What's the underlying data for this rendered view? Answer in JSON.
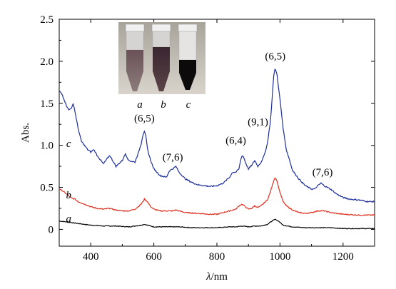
{
  "chart_data": {
    "type": "line",
    "xlabel_symbol": "λ",
    "xlabel_unit": "/nm",
    "ylabel": "Abs.",
    "xlim": [
      300,
      1300
    ],
    "ylim": [
      -0.2,
      2.5
    ],
    "xticks": [
      400,
      600,
      800,
      1000,
      1200
    ],
    "xtick_labels": [
      "400",
      "600",
      "800",
      "1000",
      "1200"
    ],
    "yticks": [
      0,
      0.5,
      1.0,
      1.5,
      2.0,
      2.5
    ],
    "ytick_labels": [
      "0",
      "0.5",
      "1.0",
      "1.5",
      "2.0",
      "2.5"
    ],
    "grid": false,
    "series": [
      {
        "name": "a",
        "color": "#000000",
        "x": [
          300,
          320,
          340,
          360,
          380,
          400,
          440,
          480,
          520,
          540,
          560,
          570,
          580,
          600,
          640,
          680,
          720,
          760,
          800,
          840,
          860,
          880,
          900,
          920,
          940,
          960,
          975,
          985,
          995,
          1010,
          1040,
          1080,
          1120,
          1160,
          1200,
          1250,
          1300
        ],
        "y": [
          0.1,
          0.09,
          0.08,
          0.07,
          0.06,
          0.05,
          0.04,
          0.04,
          0.03,
          0.04,
          0.05,
          0.06,
          0.05,
          0.03,
          0.03,
          0.03,
          0.02,
          0.02,
          0.02,
          0.03,
          0.03,
          0.04,
          0.03,
          0.04,
          0.04,
          0.06,
          0.1,
          0.12,
          0.1,
          0.05,
          0.03,
          0.02,
          0.02,
          0.02,
          0.01,
          0.01,
          0.01
        ]
      },
      {
        "name": "b",
        "color": "#e03020",
        "x": [
          300,
          310,
          320,
          330,
          340,
          350,
          360,
          380,
          400,
          420,
          440,
          460,
          480,
          500,
          520,
          540,
          560,
          570,
          580,
          590,
          600,
          620,
          640,
          660,
          670,
          680,
          700,
          740,
          780,
          800,
          820,
          840,
          860,
          870,
          880,
          890,
          900,
          910,
          920,
          930,
          940,
          960,
          970,
          980,
          985,
          990,
          1000,
          1010,
          1020,
          1040,
          1060,
          1080,
          1100,
          1120,
          1140,
          1160,
          1200,
          1250,
          1300
        ],
        "y": [
          0.48,
          0.46,
          0.43,
          0.4,
          0.37,
          0.36,
          0.33,
          0.3,
          0.27,
          0.25,
          0.24,
          0.25,
          0.23,
          0.22,
          0.22,
          0.24,
          0.3,
          0.36,
          0.33,
          0.27,
          0.24,
          0.22,
          0.22,
          0.22,
          0.23,
          0.22,
          0.2,
          0.19,
          0.18,
          0.18,
          0.2,
          0.22,
          0.24,
          0.28,
          0.3,
          0.27,
          0.24,
          0.25,
          0.28,
          0.26,
          0.28,
          0.35,
          0.45,
          0.58,
          0.62,
          0.58,
          0.44,
          0.33,
          0.28,
          0.23,
          0.2,
          0.19,
          0.2,
          0.22,
          0.22,
          0.2,
          0.18,
          0.17,
          0.17
        ]
      },
      {
        "name": "c",
        "color": "#1f2f9a",
        "x": [
          300,
          310,
          320,
          330,
          340,
          345,
          350,
          360,
          370,
          380,
          390,
          400,
          410,
          420,
          440,
          460,
          480,
          500,
          510,
          520,
          540,
          550,
          560,
          565,
          570,
          575,
          580,
          590,
          600,
          620,
          640,
          650,
          660,
          670,
          680,
          700,
          720,
          740,
          760,
          780,
          800,
          820,
          840,
          850,
          860,
          870,
          875,
          880,
          885,
          890,
          900,
          910,
          920,
          930,
          940,
          950,
          960,
          970,
          975,
          980,
          985,
          990,
          1000,
          1010,
          1020,
          1030,
          1040,
          1060,
          1080,
          1100,
          1110,
          1120,
          1130,
          1140,
          1160,
          1180,
          1200,
          1220,
          1250,
          1280,
          1300
        ],
        "y": [
          1.65,
          1.6,
          1.5,
          1.42,
          1.45,
          1.5,
          1.4,
          1.2,
          1.05,
          1.0,
          0.95,
          0.92,
          0.95,
          0.88,
          0.78,
          0.88,
          0.75,
          0.82,
          0.9,
          0.82,
          0.8,
          0.9,
          1.02,
          1.12,
          1.17,
          1.1,
          0.95,
          0.82,
          0.72,
          0.64,
          0.62,
          0.7,
          0.72,
          0.75,
          0.68,
          0.6,
          0.56,
          0.53,
          0.52,
          0.51,
          0.52,
          0.55,
          0.62,
          0.68,
          0.68,
          0.72,
          0.82,
          0.88,
          0.86,
          0.8,
          0.72,
          0.76,
          0.82,
          0.75,
          0.8,
          0.88,
          1.02,
          1.3,
          1.55,
          1.83,
          1.92,
          1.85,
          1.55,
          1.2,
          0.95,
          0.83,
          0.7,
          0.6,
          0.52,
          0.48,
          0.48,
          0.52,
          0.55,
          0.52,
          0.48,
          0.42,
          0.38,
          0.36,
          0.35,
          0.33,
          0.33
        ]
      }
    ],
    "annotations": [
      {
        "text": "(6,5)",
        "x": 570,
        "y": 1.28
      },
      {
        "text": "(7,6)",
        "x": 660,
        "y": 0.82
      },
      {
        "text": "(6,4)",
        "x": 860,
        "y": 1.02
      },
      {
        "text": "(9,1)",
        "x": 930,
        "y": 1.24
      },
      {
        "text": "(6,5)",
        "x": 985,
        "y": 2.02
      },
      {
        "text": "(7,6)",
        "x": 1135,
        "y": 0.64
      }
    ],
    "curve_labels": [
      {
        "text": "c",
        "x": 330,
        "y": 0.98
      },
      {
        "text": "b",
        "x": 330,
        "y": 0.37
      },
      {
        "text": "a",
        "x": 330,
        "y": 0.09
      }
    ],
    "inset": {
      "description_labels": [
        "a",
        "b",
        "c"
      ]
    }
  }
}
